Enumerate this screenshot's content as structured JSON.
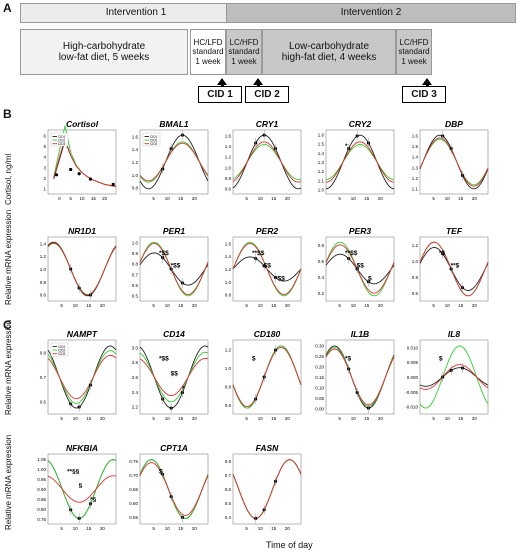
{
  "panel_a": {
    "letter": "A",
    "intervention1": "Intervention 1",
    "intervention2": "Intervention 2",
    "phases": [
      {
        "label": "High-carbohydrate\nlow-fat diet, 5 weeks"
      },
      {
        "label": "HC/LFD\nstandard\n1 week"
      },
      {
        "label": "LC/HFD\nstandard\n1 week"
      },
      {
        "label": "Low-carbohydrate\nhigh-fat diet, 4 weeks"
      },
      {
        "label": "LC/HFD\nstandard\n1 week"
      }
    ],
    "cids": [
      "CID 1",
      "CID 2",
      "CID 3"
    ],
    "colors": {
      "intervention1_bg": "#ececec",
      "intervention2_bg": "#bdbdbd",
      "phase_light": "#f2f2f2",
      "phase_dark": "#c8c8c8"
    }
  },
  "panel_b": {
    "letter": "B",
    "ylabel_top": "Cortisol, ng/ml",
    "ylabel_bottom": "Relative mRNA expression"
  },
  "panel_c": {
    "letter": "C",
    "ylabel": "Relative mRNA expression",
    "xlabel": "Time of day"
  },
  "legend": [
    "CID1",
    "CID2",
    "CID3"
  ],
  "series_colors": {
    "CID1": "#222222",
    "CID2": "#33cc33",
    "CID3": "#e03030"
  },
  "chart_data": [
    {
      "type": "line",
      "title": "Cortisol",
      "xlim": [
        0,
        24
      ],
      "ylim": [
        0,
        6
      ],
      "yticks": [
        "1",
        "2",
        "3",
        "4",
        "5",
        "6"
      ],
      "xticks": [
        "0",
        "5",
        "10",
        "15",
        "20"
      ],
      "x": [
        2,
        4,
        6,
        8,
        10,
        12,
        14,
        16,
        18,
        20,
        22,
        24
      ],
      "series": [
        {
          "name": "CID1",
          "values": [
            1.4,
            3.2,
            5.0,
            3.6,
            2.6,
            2.0,
            1.6,
            1.3,
            1.1,
            0.9,
            0.8,
            0.7
          ]
        },
        {
          "name": "CID2",
          "values": [
            1.6,
            4.0,
            6.4,
            3.9,
            2.7,
            2.0,
            1.6,
            1.3,
            1.1,
            0.9,
            0.8,
            0.7
          ]
        },
        {
          "name": "CID3",
          "values": [
            1.5,
            3.4,
            5.2,
            3.6,
            2.6,
            2.0,
            1.6,
            1.3,
            1.1,
            0.9,
            0.8,
            0.7
          ]
        }
      ],
      "markers": [
        {
          "x": 3,
          "y": 1.8
        },
        {
          "x": 8,
          "y": 2.3
        },
        {
          "x": 11,
          "y": 1.9
        },
        {
          "x": 15,
          "y": 1.4
        },
        {
          "x": 23,
          "y": 0.9
        }
      ],
      "annotations": [],
      "legend": true
    },
    {
      "type": "line",
      "title": "BMAL1",
      "ylim": [
        0.7,
        1.6
      ],
      "yticks": [
        "0.8",
        "1.0",
        "1.2",
        "1.4",
        "1.6"
      ],
      "xticks": [
        "5",
        "10",
        "15",
        "20"
      ],
      "amp": {
        "CID1": 1,
        "CID2": 0.75,
        "CID3": 0.7
      },
      "phase": 15,
      "legend": true,
      "annotations": []
    },
    {
      "type": "line",
      "title": "CRY1",
      "ylim": [
        0.6,
        1.6
      ],
      "yticks": [
        "0.6",
        "0.8",
        "1.0",
        "1.2",
        "1.4",
        "1.6"
      ],
      "xticks": [
        "5",
        "10",
        "15",
        "20"
      ],
      "amp": {
        "CID1": 1,
        "CID2": 0.65,
        "CID3": 0.75
      },
      "phase": 11,
      "annotations": []
    },
    {
      "type": "line",
      "title": "CRY2",
      "ylim": [
        1.0,
        1.6
      ],
      "yticks": [
        "1.0",
        "1.1",
        "1.2",
        "1.3",
        "1.4",
        "1.5",
        "1.6"
      ],
      "xticks": [
        "5",
        "10",
        "15",
        "20"
      ],
      "amp": {
        "CID1": 1,
        "CID2": 0.65,
        "CID3": 0.75
      },
      "phase": 12,
      "annotations": [
        "*"
      ]
    },
    {
      "type": "line",
      "title": "DBP",
      "ylim": [
        1.0,
        1.6
      ],
      "yticks": [
        "1.1",
        "1.2",
        "1.3",
        "1.4",
        "1.5",
        "1.6"
      ],
      "xticks": [
        "5",
        "10",
        "15",
        "20"
      ],
      "amp": {
        "CID1": 1,
        "CID2": 0.85,
        "CID3": 0.9
      },
      "phase": 7,
      "annotations": []
    },
    {
      "type": "line",
      "title": "NR1D1",
      "ylim": [
        0.5,
        1.5
      ],
      "yticks": [
        "0.6",
        "0.8",
        "1.0",
        "1.2",
        "1.4"
      ],
      "xticks": [
        "5",
        "10",
        "15",
        "20"
      ],
      "amp": {
        "CID1": 1,
        "CID2": 0.95,
        "CID3": 0.97
      },
      "phase": 2,
      "annotations": []
    },
    {
      "type": "line",
      "title": "PER1",
      "ylim": [
        0.4,
        1.0
      ],
      "yticks": [
        "0.5",
        "0.6",
        "0.7",
        "0.8",
        "0.9",
        "1.0"
      ],
      "xticks": [
        "5",
        "10",
        "15",
        "20"
      ],
      "amp": {
        "CID1": 0.6,
        "CID2": 1,
        "CID3": 0.95
      },
      "phase": 5,
      "annotations": [
        "*$$",
        "*$$"
      ]
    },
    {
      "type": "line",
      "title": "PER2",
      "ylim": [
        0.6,
        1.6
      ],
      "yticks": [
        "0.8",
        "1.0",
        "1.2",
        "1.4",
        "1.6"
      ],
      "xticks": [
        "5",
        "10",
        "15",
        "20"
      ],
      "amp": {
        "CID1": 0.45,
        "CID2": 1,
        "CID3": 0.95
      },
      "phase": 6,
      "annotations": [
        "**$$",
        "$$",
        "*$$"
      ]
    },
    {
      "type": "line",
      "title": "PER3",
      "ylim": [
        0.1,
        0.9
      ],
      "yticks": [
        "0.2",
        "0.4",
        "0.6",
        "0.8"
      ],
      "xticks": [
        "5",
        "10",
        "15",
        "20"
      ],
      "amp": {
        "CID1": 0.55,
        "CID2": 1,
        "CID3": 0.9
      },
      "phase": 5,
      "annotations": [
        "**$$",
        "$$",
        "$"
      ]
    },
    {
      "type": "line",
      "title": "TEF",
      "ylim": [
        0.5,
        1.3
      ],
      "yticks": [
        "0.6",
        "0.8",
        "1.0",
        "1.2"
      ],
      "xticks": [
        "5",
        "10",
        "15",
        "20"
      ],
      "amp": {
        "CID1": 0.8,
        "CID2": 1,
        "CID3": 1
      },
      "phase": 5,
      "annotations": [
        "*$",
        "**$"
      ]
    },
    {
      "type": "line",
      "title": "NAMPT",
      "ylim": [
        0.55,
        0.85
      ],
      "yticks": [
        "0.6",
        "0.7",
        "0.8"
      ],
      "xticks": [
        "5",
        "10",
        "15",
        "20"
      ],
      "amp": {
        "CID1": 1,
        "CID2": 0.85,
        "CID3": 0.7
      },
      "phase": 22,
      "legend": true,
      "annotations": []
    },
    {
      "type": "line",
      "title": "CD14",
      "ylim": [
        2.2,
        3.1
      ],
      "yticks": [
        "2.2",
        "2.4",
        "2.6",
        "2.8",
        "3.0"
      ],
      "xticks": [
        "5",
        "10",
        "15",
        "20"
      ],
      "amp": {
        "CID1": 1,
        "CID2": 0.8,
        "CID3": 0.6
      },
      "phase": 23,
      "annotations": [
        "*$$",
        "$$",
        "*"
      ]
    },
    {
      "type": "line",
      "title": "CD180",
      "ylim": [
        0.6,
        1.3
      ],
      "yticks": [
        "0.6",
        "0.8",
        "1.0",
        "1.2"
      ],
      "xticks": [
        "5",
        "10",
        "15",
        "20"
      ],
      "amp": {
        "CID1": 1,
        "CID2": 1,
        "CID3": 0.95
      },
      "phase": 17,
      "annotations": [
        "$"
      ]
    },
    {
      "type": "line",
      "title": "IL1B",
      "ylim": [
        0.0,
        0.3
      ],
      "yticks": [
        "0.00",
        "0.05",
        "0.10",
        "0.15",
        "0.20",
        "0.25",
        "0.30"
      ],
      "xticks": [
        "5",
        "10",
        "15",
        "20"
      ],
      "amp": {
        "CID1": 1,
        "CID2": 0.95,
        "CID3": 0.9
      },
      "phase": 3,
      "annotations": [
        "*$"
      ]
    },
    {
      "type": "line",
      "title": "IL8",
      "ylim": [
        -0.01,
        0.01
      ],
      "yticks": [
        "-0.010",
        "-0.005",
        "0.000",
        "0.005",
        "0.010"
      ],
      "xticks": [
        "5",
        "10",
        "15",
        "20"
      ],
      "amp": {
        "CID1": 0.3,
        "CID2": 1,
        "CID3": 0.4
      },
      "phase": 14,
      "annotations": [
        "$"
      ]
    },
    {
      "type": "line",
      "title": "NFKBIA",
      "ylim": [
        0.7,
        1.1
      ],
      "yticks": [
        "0.75",
        "0.80",
        "0.85",
        "0.90",
        "0.95",
        "1.00",
        "1.05"
      ],
      "xticks": [
        "5",
        "10",
        "15",
        "20"
      ],
      "amp": {
        "CID1": 1,
        "CID2": 1,
        "CID3": 0.45
      },
      "phase": 23,
      "annotations": [
        "**§§",
        "§",
        "*§"
      ]
    },
    {
      "type": "line",
      "title": "CPT1A",
      "ylim": [
        0.5,
        0.78
      ],
      "yticks": [
        "0.55",
        "0.60",
        "0.65",
        "0.70",
        "0.75"
      ],
      "xticks": [
        "5",
        "10",
        "15",
        "20"
      ],
      "amp": {
        "CID1": 1,
        "CID2": 1,
        "CID3": 0.9
      },
      "phase": 4,
      "annotations": [
        "$"
      ]
    },
    {
      "type": "line",
      "title": "FASN",
      "ylim": [
        0.3,
        0.9
      ],
      "yticks": [
        "0.4",
        "0.5",
        "0.6",
        "0.7",
        "0.8"
      ],
      "xticks": [
        "5",
        "10",
        "15",
        "20"
      ],
      "amp": {
        "CID1": 1,
        "CID2": 1,
        "CID3": 1
      },
      "phase": 20,
      "annotations": []
    }
  ]
}
